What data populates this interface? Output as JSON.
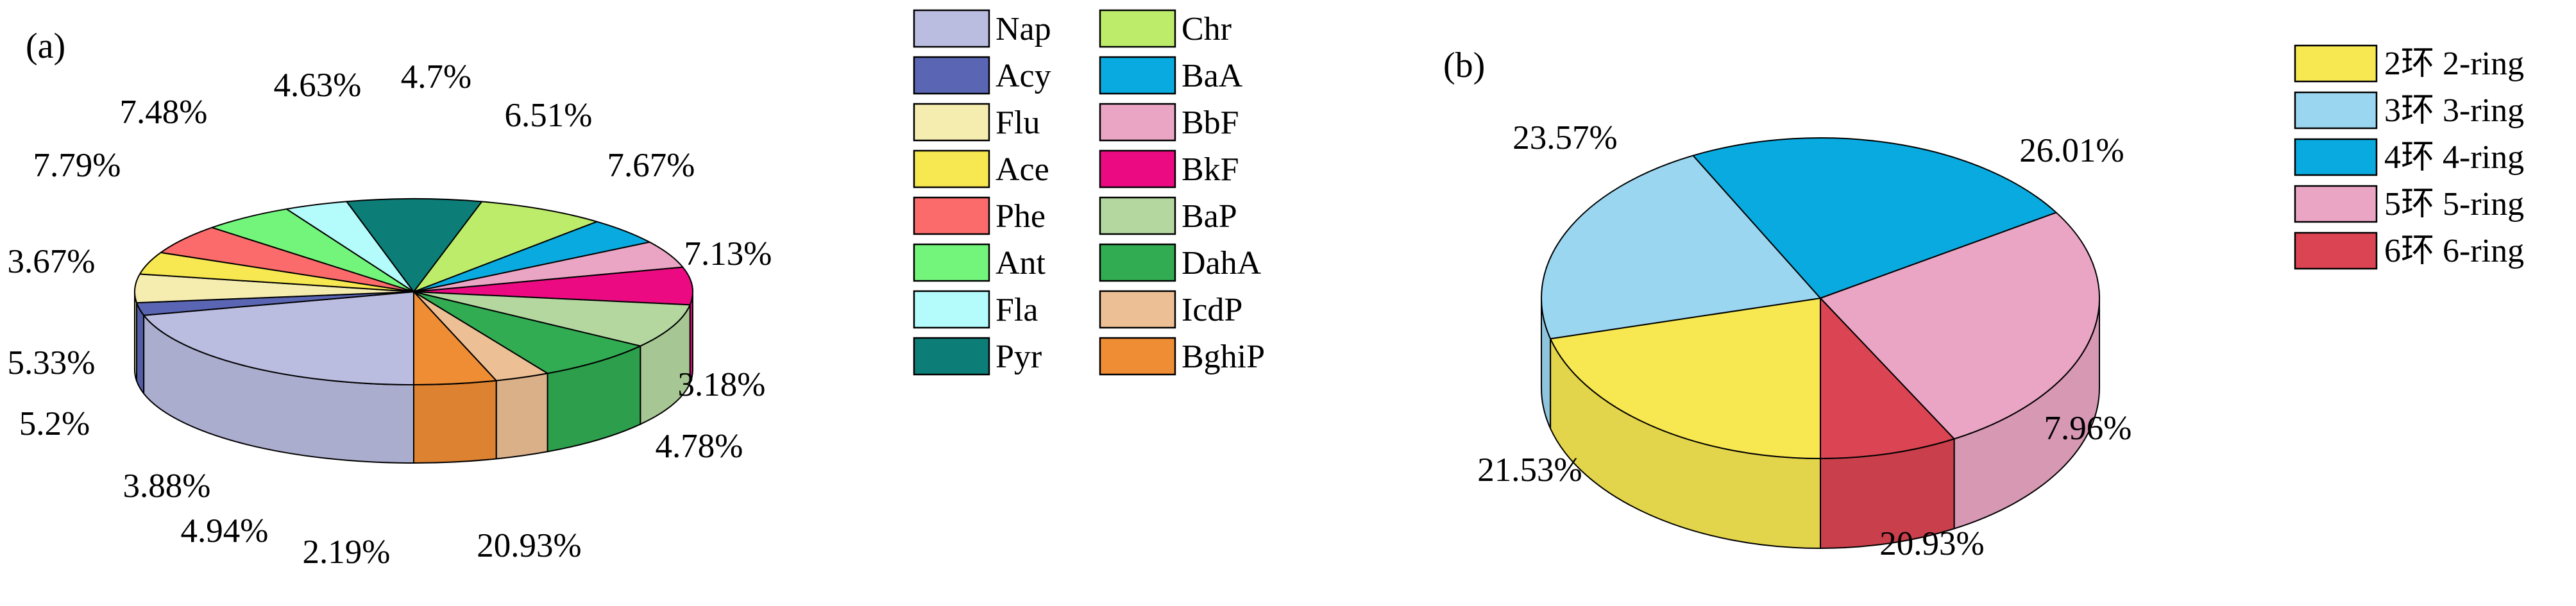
{
  "chart_data": [
    {
      "type": "pie",
      "panel_label": "(a)",
      "title": "",
      "series": [
        {
          "name": "Nap",
          "value": 20.93,
          "label": "20.93%",
          "color": "#babce0"
        },
        {
          "name": "Acy",
          "value": 2.19,
          "label": "2.19%",
          "color": "#5a66b4"
        },
        {
          "name": "Flu",
          "value": 4.94,
          "label": "4.94%",
          "color": "#f5ecb0"
        },
        {
          "name": "Ace",
          "value": 3.88,
          "label": "3.88%",
          "color": "#f7e751"
        },
        {
          "name": "Phe",
          "value": 5.2,
          "label": "5.2%",
          "color": "#fb6b6b"
        },
        {
          "name": "Ant",
          "value": 5.33,
          "label": "5.33%",
          "color": "#73f57c"
        },
        {
          "name": "Fla",
          "value": 3.67,
          "label": "3.67%",
          "color": "#b4fbfb"
        },
        {
          "name": "Pyr",
          "value": 7.79,
          "label": "7.79%",
          "color": "#0c7e77"
        },
        {
          "name": "Chr",
          "value": 7.48,
          "label": "7.48%",
          "color": "#bdec6a"
        },
        {
          "name": "BaA",
          "value": 4.63,
          "label": "4.63%",
          "color": "#09aadf"
        },
        {
          "name": "BbF",
          "value": 4.7,
          "label": "4.7%",
          "color": "#eaa5c4"
        },
        {
          "name": "BkF",
          "value": 6.51,
          "label": "6.51%",
          "color": "#ec0a83"
        },
        {
          "name": "BaP",
          "value": 7.67,
          "label": "7.67%",
          "color": "#b4d7a0"
        },
        {
          "name": "DahA",
          "value": 7.13,
          "label": "7.13%",
          "color": "#31ac52"
        },
        {
          "name": "IcdP",
          "value": 3.18,
          "label": "3.18%",
          "color": "#edbf95"
        },
        {
          "name": "BghiP",
          "value": 4.78,
          "label": "4.78%",
          "color": "#ef8d34"
        }
      ],
      "legend_columns": [
        [
          "Nap",
          "Acy",
          "Flu",
          "Ace",
          "Phe",
          "Ant",
          "Fla",
          "Pyr"
        ],
        [
          "Chr",
          "BaA",
          "BbF",
          "BkF",
          "BaP",
          "DahA",
          "IcdP",
          "BghiP"
        ]
      ]
    },
    {
      "type": "pie",
      "panel_label": "(b)",
      "title": "",
      "series": [
        {
          "name": "2环 2-ring",
          "value": 20.93,
          "label": "20.93%",
          "color": "#f7e751"
        },
        {
          "name": "3环 3-ring",
          "value": 21.53,
          "label": "21.53%",
          "color": "#9ad6f0"
        },
        {
          "name": "4环 4-ring",
          "value": 23.57,
          "label": "23.57%",
          "color": "#09aadf"
        },
        {
          "name": "5环 5-ring",
          "value": 26.01,
          "label": "26.01%",
          "color": "#eaa5c4"
        },
        {
          "name": "6环 6-ring",
          "value": 7.96,
          "label": "7.96%",
          "color": "#db4452"
        }
      ]
    }
  ]
}
